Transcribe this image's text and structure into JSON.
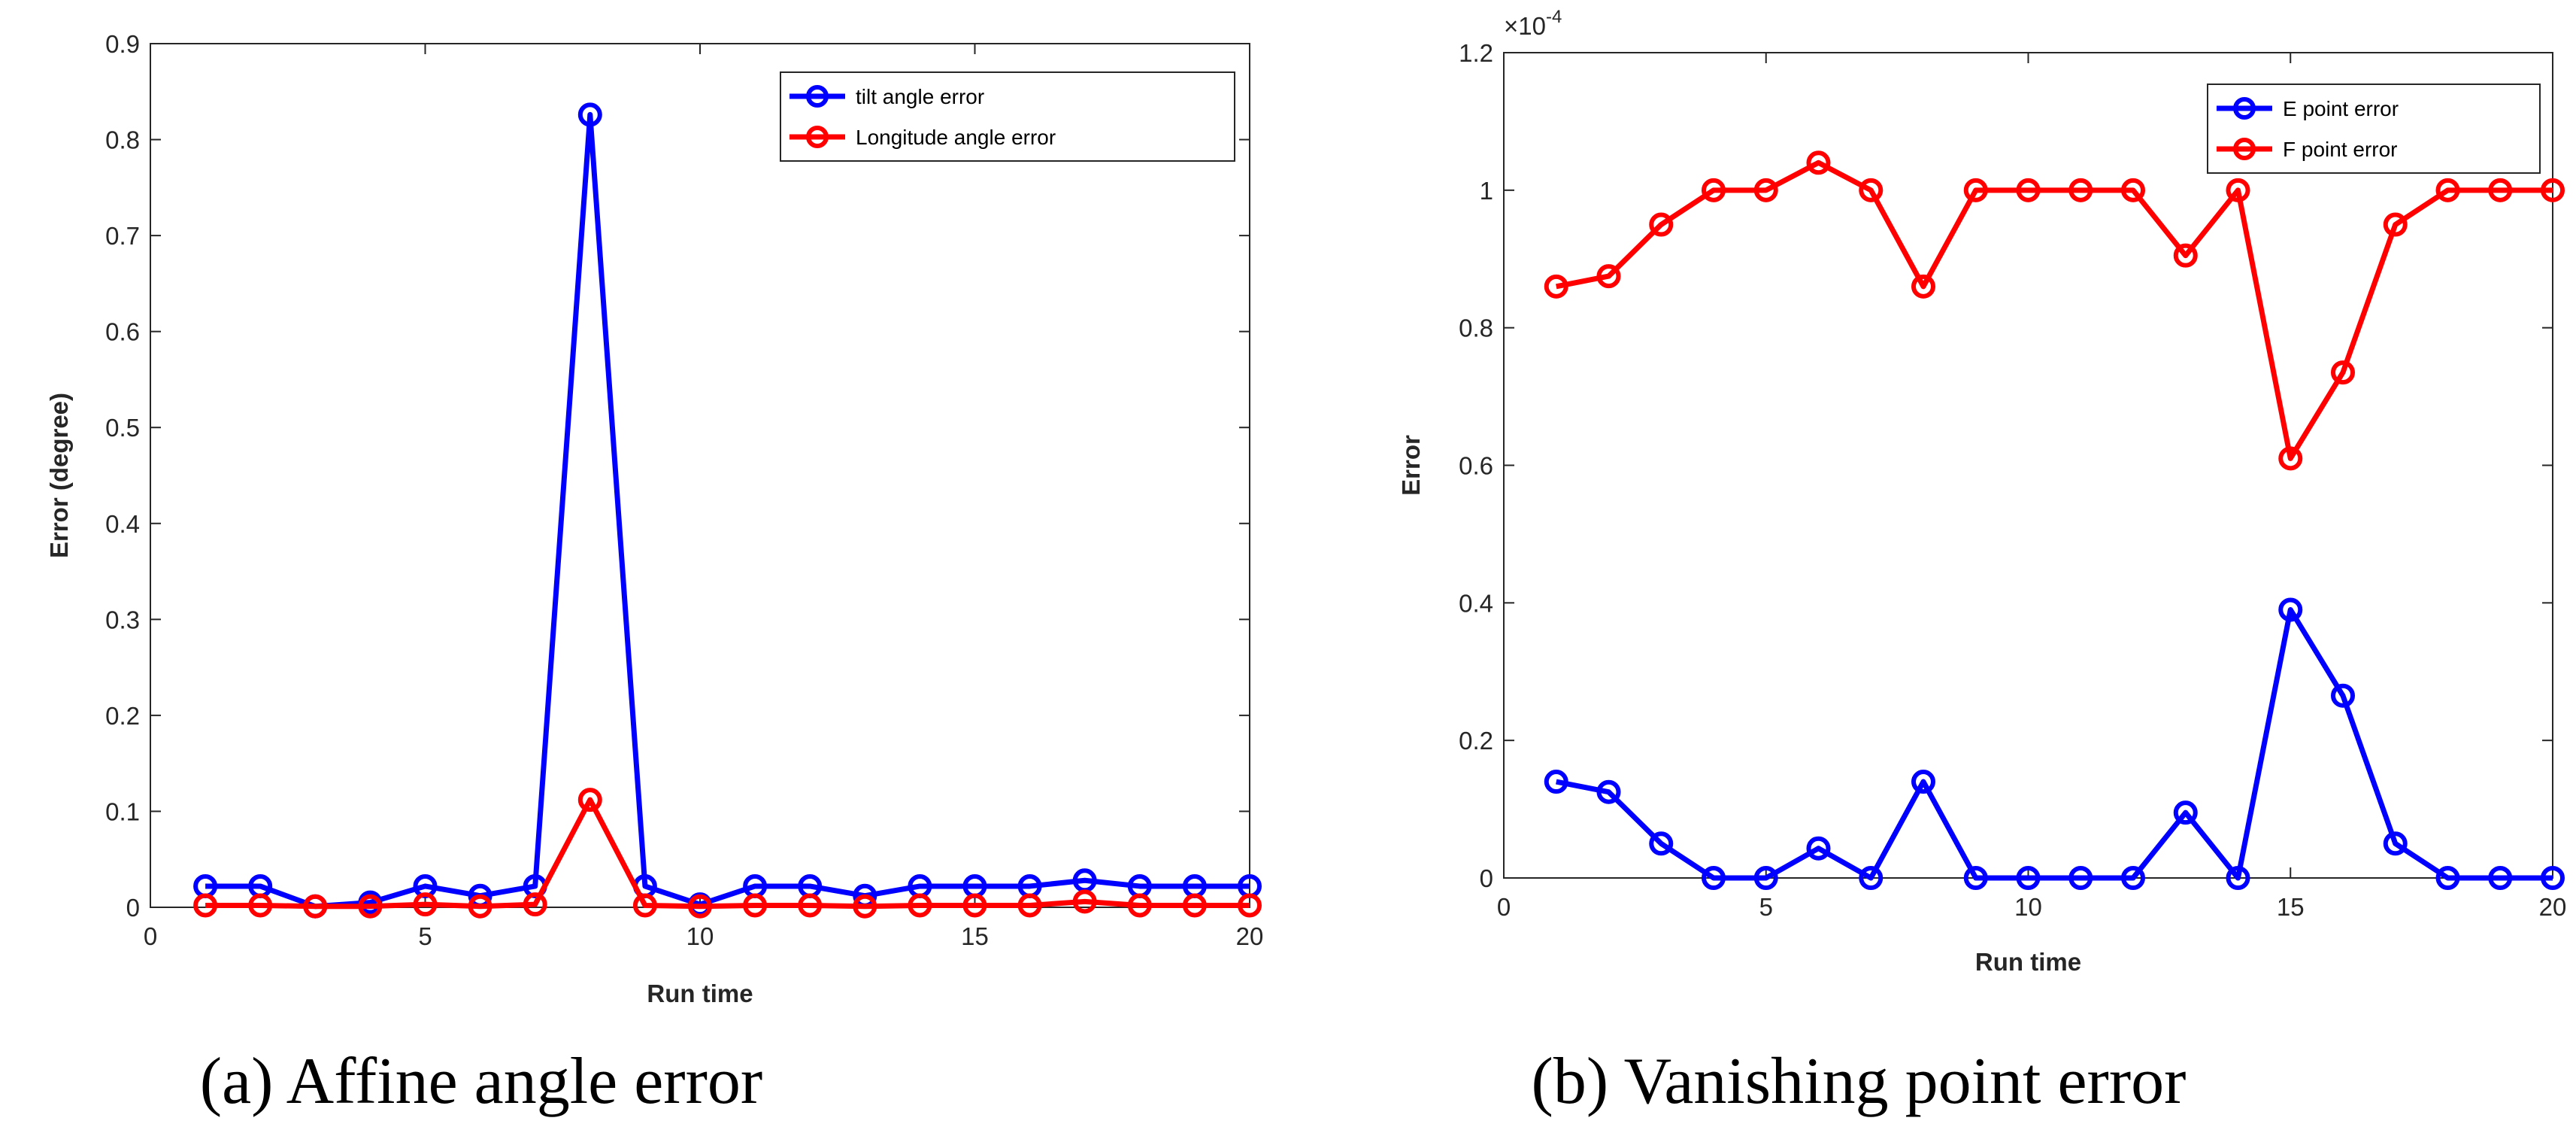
{
  "chart_data": [
    {
      "type": "line",
      "title": "",
      "caption": "(a) Affine angle error",
      "xlabel": "Run time",
      "ylabel": "Error (degree)",
      "xlim": [
        0,
        20
      ],
      "ylim": [
        0,
        0.9
      ],
      "xticks": [
        0,
        5,
        10,
        15,
        20
      ],
      "xtick_labels": [
        "0",
        "5",
        "10",
        "15",
        "20"
      ],
      "yticks": [
        0,
        0.1,
        0.2,
        0.3,
        0.4,
        0.5,
        0.6,
        0.7,
        0.8,
        0.9
      ],
      "ytick_labels": [
        "0",
        "0.1",
        "0.2",
        "0.3",
        "0.4",
        "0.5",
        "0.6",
        "0.7",
        "0.8",
        "0.9"
      ],
      "grid": false,
      "legend_position": "top-right",
      "x": [
        1,
        2,
        3,
        4,
        5,
        6,
        7,
        8,
        9,
        10,
        11,
        12,
        13,
        14,
        15,
        16,
        17,
        18,
        19,
        20
      ],
      "series": [
        {
          "name": "tilt angle error",
          "color": "#0000ff",
          "values": [
            0.022,
            0.022,
            0.001,
            0.005,
            0.022,
            0.012,
            0.022,
            0.826,
            0.022,
            0.003,
            0.022,
            0.022,
            0.012,
            0.022,
            0.022,
            0.022,
            0.028,
            0.022,
            0.022,
            0.022
          ]
        },
        {
          "name": "Longitude angle error",
          "color": "#ff0000",
          "values": [
            0.002,
            0.002,
            0.001,
            0.001,
            0.003,
            0.001,
            0.003,
            0.112,
            0.002,
            0.001,
            0.002,
            0.002,
            0.001,
            0.002,
            0.002,
            0.002,
            0.006,
            0.002,
            0.002,
            0.002
          ]
        }
      ]
    },
    {
      "type": "line",
      "title": "",
      "caption": "(b) Vanishing point error",
      "xlabel": "Run time",
      "ylabel": "Error",
      "exponent_label": "×10",
      "exponent_power": "-4",
      "xlim": [
        0,
        20
      ],
      "ylim": [
        0,
        1.2
      ],
      "xticks": [
        0,
        5,
        10,
        15,
        20
      ],
      "xtick_labels": [
        "0",
        "5",
        "10",
        "15",
        "20"
      ],
      "yticks": [
        0,
        0.2,
        0.4,
        0.6,
        0.8,
        1,
        1.2
      ],
      "ytick_labels": [
        "0",
        "0.2",
        "0.4",
        "0.6",
        "0.8",
        "1",
        "1.2"
      ],
      "grid": false,
      "legend_position": "top-right",
      "x": [
        1,
        2,
        3,
        4,
        5,
        6,
        7,
        8,
        9,
        10,
        11,
        12,
        13,
        14,
        15,
        16,
        17,
        18,
        19,
        20
      ],
      "series": [
        {
          "name": "E point error",
          "color": "#0000ff",
          "values": [
            0.14,
            0.125,
            0.05,
            0,
            0,
            0.043,
            0,
            0.14,
            0,
            0,
            0,
            0,
            0.095,
            0,
            0.39,
            0.265,
            0.05,
            0,
            0,
            0
          ]
        },
        {
          "name": "F point error",
          "color": "#ff0000",
          "values": [
            0.86,
            0.875,
            0.95,
            1,
            1,
            1.04,
            1,
            0.86,
            1,
            1,
            1,
            1,
            0.905,
            1,
            0.61,
            0.735,
            0.95,
            1,
            1,
            1
          ]
        }
      ]
    }
  ]
}
